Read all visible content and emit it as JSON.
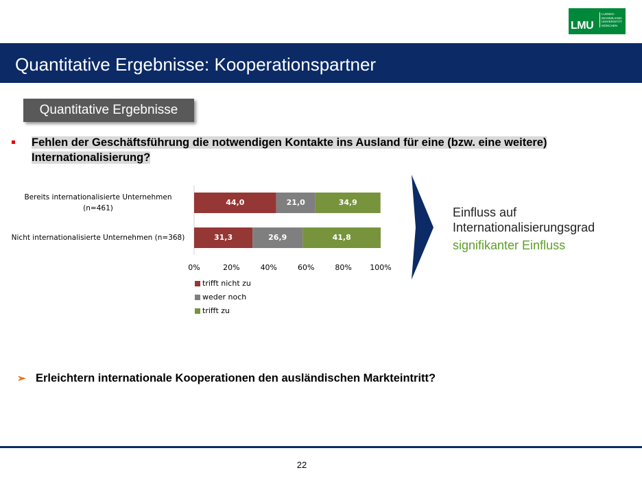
{
  "header": {
    "title": "Quantitative Ergebnisse: Kooperationspartner",
    "logo": "LMU",
    "logo_lines": [
      "LUDWIG-",
      "MAXIMILIANS-",
      "UNIVERSITÄT",
      "MÜNCHEN"
    ]
  },
  "section_label": "Quantitative Ergebnisse",
  "question": "Fehlen der Geschäftsführung die notwendigen Kontakte ins Ausland für eine (bzw. eine weitere) Internationalisierung?",
  "chart_data": {
    "type": "stacked-bar-horizontal",
    "categories": [
      "Bereits internationalisierte Unternehmen (n=461)",
      "Nicht internationalisierte Unternehmen (n=368)"
    ],
    "series": [
      {
        "name": "trifft nicht zu",
        "color": "#953735",
        "values": [
          44.0,
          31.3
        ],
        "value_labels": [
          "44,0",
          "31,3"
        ]
      },
      {
        "name": "weder noch",
        "color": "#7f7f7f",
        "values": [
          21.0,
          26.9
        ],
        "value_labels": [
          "21,0",
          "26,9"
        ]
      },
      {
        "name": "trifft zu",
        "color": "#77933c",
        "values": [
          34.9,
          41.8
        ],
        "value_labels": [
          "34,9",
          "41,8"
        ]
      }
    ],
    "xlim": [
      0,
      100
    ],
    "xticks": [
      {
        "value": 0,
        "label": "0%"
      },
      {
        "value": 20,
        "label": "20%"
      },
      {
        "value": 40,
        "label": "40%"
      },
      {
        "value": 60,
        "label": "60%"
      },
      {
        "value": 80,
        "label": "80%"
      },
      {
        "value": 100,
        "label": "100%"
      }
    ],
    "grid": false,
    "legend": "bottom-left"
  },
  "callout": {
    "line1": "Einfluss auf",
    "line2": "Internationalisierungsgrad",
    "result": "signifikanter Einfluss"
  },
  "next_question": "Erleichtern internationale Kooperationen den ausländischen Markteintritt?",
  "page_number": "22"
}
